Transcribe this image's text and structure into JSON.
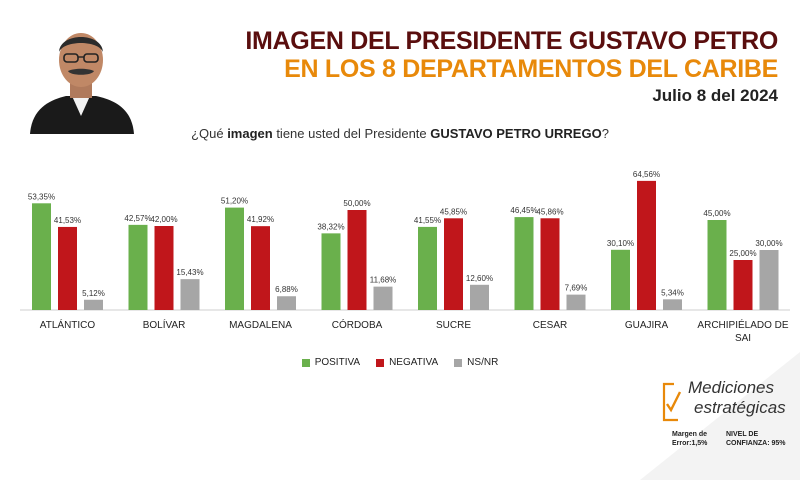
{
  "header": {
    "title_line1": "IMAGEN DEL PRESIDENTE GUSTAVO PETRO",
    "title_line2": "EN LOS 8 DEPARTAMENTOS DEL CARIBE",
    "date": "Julio 8 del 2024"
  },
  "question": {
    "prefix": "¿Qué ",
    "bold1": "imagen",
    "middle": " tiene usted del Presidente ",
    "bold2": "GUSTAVO PETRO URREGO",
    "suffix": "?"
  },
  "legend": {
    "positiva": "POSITIVA",
    "negativa": "NEGATIVA",
    "nsnr": "NS/NR"
  },
  "logo": {
    "line1": "Mediciones",
    "line2": "estratégicas",
    "margin_label": "Margen de",
    "margin_value": "Error:1,5%",
    "confidence_label": "NIVEL DE",
    "confidence_value": "CONFIANZA: 95%"
  },
  "colors": {
    "positiva": "#6ab04c",
    "negativa": "#c0161b",
    "nsnr": "#a6a6a6",
    "title_dark": "#5a0e0e",
    "title_orange": "#e8890a"
  },
  "chart_data": {
    "type": "bar",
    "categories": [
      "ATLÁNTICO",
      "BOLÍVAR",
      "MAGDALENA",
      "CÓRDOBA",
      "SUCRE",
      "CESAR",
      "GUAJIRA",
      "ARCHIPIÉLADO DE SAI"
    ],
    "series": [
      {
        "name": "POSITIVA",
        "values": [
          53.35,
          42.57,
          51.2,
          38.32,
          41.55,
          46.45,
          30.1,
          45.0
        ],
        "labels": [
          "53,35%",
          "42,57%",
          "51,20%",
          "38,32%",
          "41,55%",
          "46,45%",
          "30,10%",
          "45,00%"
        ]
      },
      {
        "name": "NEGATIVA",
        "values": [
          41.53,
          42.0,
          41.92,
          50.0,
          45.85,
          45.86,
          64.56,
          25.0
        ],
        "labels": [
          "41,53%",
          "42,00%",
          "41,92%",
          "50,00%",
          "45,85%",
          "45,86%",
          "64,56%",
          "25,00%"
        ]
      },
      {
        "name": "NS/NR",
        "values": [
          5.12,
          15.43,
          6.88,
          11.68,
          12.6,
          7.69,
          5.34,
          30.0
        ],
        "labels": [
          "5,12%",
          "15,43%",
          "6,88%",
          "11,68%",
          "12,60%",
          "7,69%",
          "5,34%",
          "30,00%"
        ]
      }
    ],
    "ylim": [
      0,
      70
    ],
    "legend_position": "bottom"
  }
}
